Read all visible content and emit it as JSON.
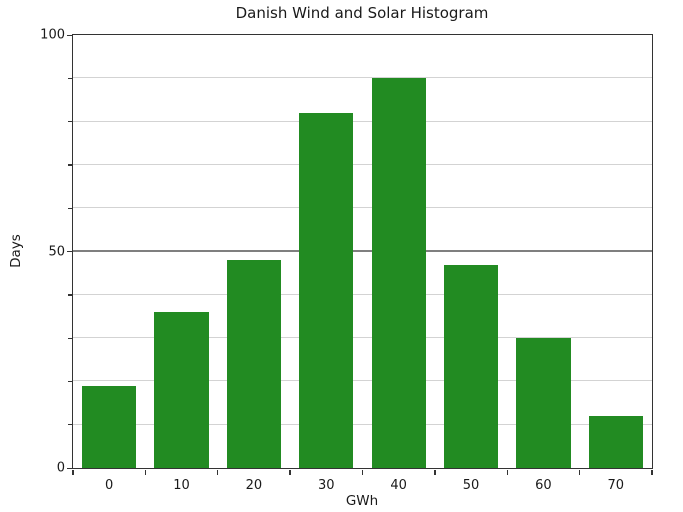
{
  "figure": {
    "background": "#ffffff"
  },
  "chart_data": {
    "type": "bar",
    "title": "Danish Wind and Solar Histogram",
    "xlabel": "GWh",
    "ylabel": "Days",
    "categories": [
      "0",
      "10",
      "20",
      "30",
      "40",
      "50",
      "60",
      "70"
    ],
    "values": [
      19,
      36,
      48,
      82,
      90,
      47,
      30,
      12
    ],
    "ylim": [
      0,
      100
    ],
    "yticks_labeled": [
      0,
      50,
      100
    ],
    "grid_interval": 10,
    "grid_on": true,
    "legend_position": "none",
    "bar_rel_width": 0.75,
    "bar_color": "#228B22",
    "grid_minor_color": "#d3d3d3",
    "grid_major_color": "#7f7f7f",
    "spine_color": "#333333",
    "text_color": "#1a1a1a"
  }
}
